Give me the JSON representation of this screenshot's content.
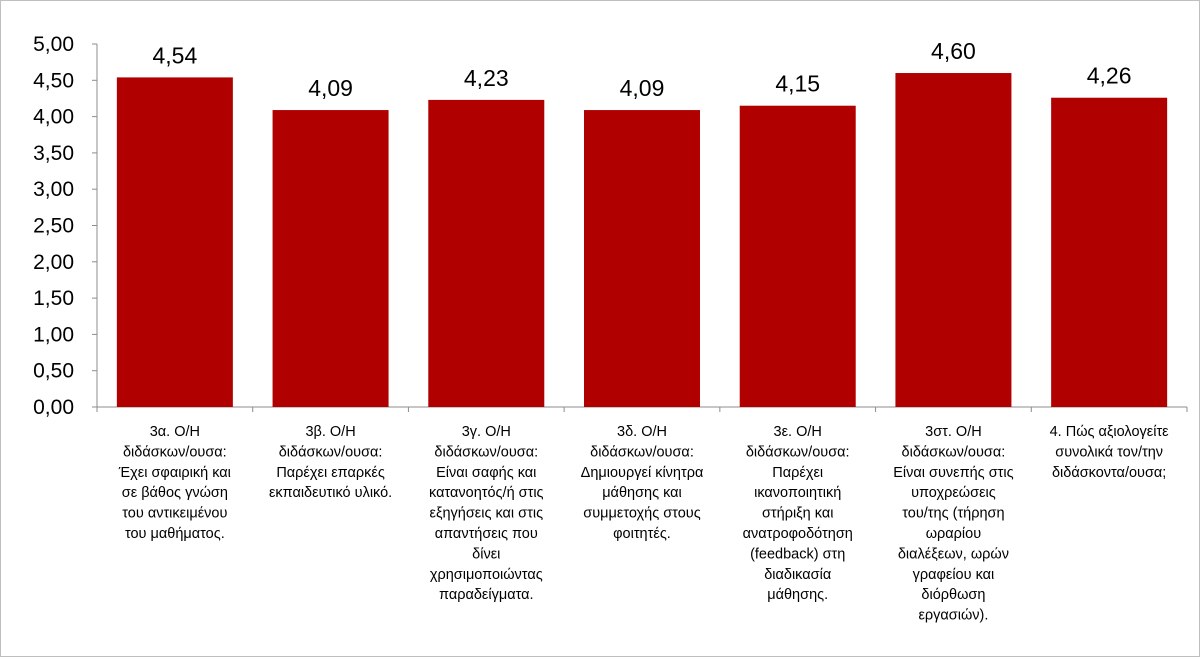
{
  "chart_data": {
    "type": "bar",
    "categories": [
      [
        "3α. Ο/Η",
        "διδάσκων/ουσα:",
        "Έχει σφαιρική και",
        "σε βάθος γνώση",
        "του αντικειμένου",
        "του μαθήματος."
      ],
      [
        "3β. Ο/Η",
        "διδάσκων/ουσα:",
        "Παρέχει επαρκές",
        "εκπαιδευτικό υλικό."
      ],
      [
        "3γ. Ο/Η",
        "διδάσκων/ουσα:",
        "Είναι σαφής και",
        "κατανοητός/ή στις",
        "εξηγήσεις και στις",
        "απαντήσεις που",
        "δίνει",
        "χρησιμοποιώντας",
        "παραδείγματα."
      ],
      [
        "3δ. Ο/Η",
        "διδάσκων/ουσα:",
        "Δημιουργεί κίνητρα",
        "μάθησης και",
        "συμμετοχής στους",
        "φοιτητές."
      ],
      [
        "3ε. Ο/Η",
        "διδάσκων/ουσα:",
        "Παρέχει",
        "ικανοποιητική",
        "στήριξη και",
        "ανατροφοδότηση",
        "(feedback) στη",
        "διαδικασία",
        "μάθησης."
      ],
      [
        "3στ. Ο/Η",
        "διδάσκων/ουσα:",
        "Είναι συνεπής στις",
        "υποχρεώσεις",
        "του/της (τήρηση",
        "ωραρίου",
        "διαλέξεων, ωρών",
        "γραφείου και",
        "διόρθωση",
        "εργασιών)."
      ],
      [
        "4. Πώς αξιολογείτε",
        "συνολικά τον/την",
        "διδάσκοντα/ουσα;"
      ]
    ],
    "values": [
      4.54,
      4.09,
      4.23,
      4.09,
      4.15,
      4.6,
      4.26
    ],
    "value_labels": [
      "4,54",
      "4,09",
      "4,23",
      "4,09",
      "4,15",
      "4,60",
      "4,26"
    ],
    "yticks": [
      "0,00",
      "0,50",
      "1,00",
      "1,50",
      "2,00",
      "2,50",
      "3,00",
      "3,50",
      "4,00",
      "4,50",
      "5,00"
    ],
    "ylim": [
      0,
      5
    ],
    "ystep": 0.5,
    "grid": false,
    "legend": "none",
    "bar_color": "#b00000",
    "axis_color": "#8c8c8c"
  }
}
